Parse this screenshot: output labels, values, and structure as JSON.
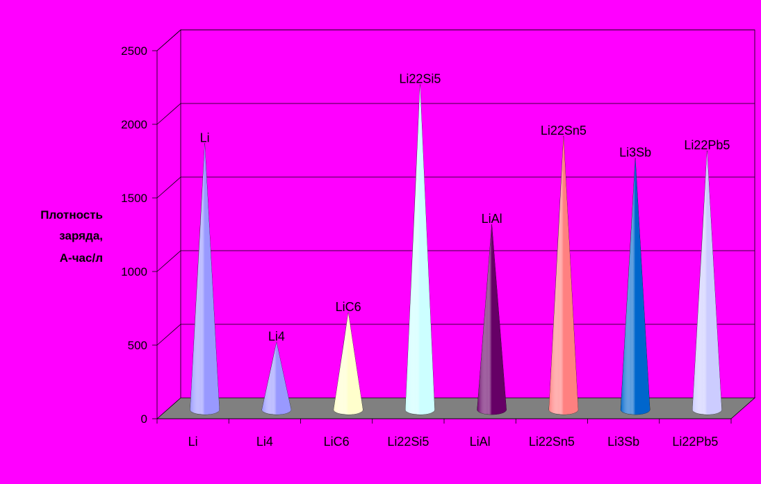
{
  "chart_data": {
    "type": "bar",
    "subtype": "3d-cone",
    "ylabel": [
      "Плотность",
      "заряда,",
      "А-час/л"
    ],
    "ylim": [
      0,
      2500
    ],
    "yticks": [
      "0",
      "500",
      "1000",
      "1500",
      "2000",
      "2500"
    ],
    "grid": true,
    "legend": "none",
    "categories": [
      "Li",
      "Li4",
      "LiC6",
      "Li22Si5",
      "LiAl",
      "Li22Sn5",
      "Li3Sb",
      "Li22Pb5"
    ],
    "values": [
      1800,
      450,
      650,
      2200,
      1250,
      1850,
      1700,
      1750
    ],
    "data_labels": [
      "Li",
      "Li4",
      "LiC6",
      "Li22Si5",
      "LiAl",
      "Li22Sn5",
      "Li3Sb",
      "Li22Pb5"
    ],
    "colors": [
      "#9999FF",
      "#9999FF",
      "#FFFFCC",
      "#CCFFFF",
      "#660066",
      "#FF8080",
      "#0066CC",
      "#CCCCFF"
    ]
  },
  "colors": {
    "background": "#FF00FF",
    "floor": "#808080",
    "gridline": "#000000"
  }
}
